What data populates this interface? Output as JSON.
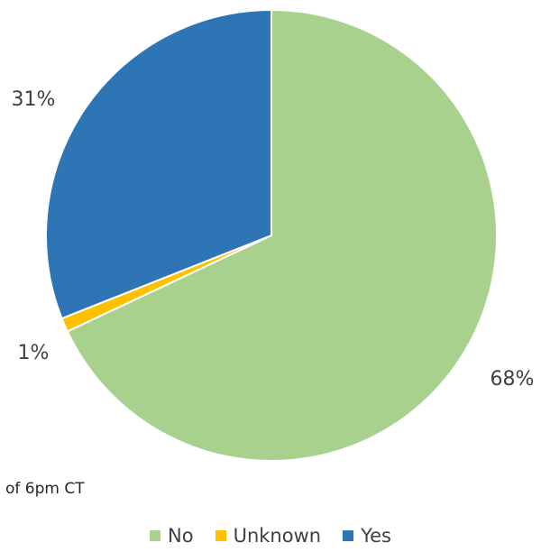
{
  "chart_data": {
    "type": "pie",
    "categories": [
      "No",
      "Unknown",
      "Yes"
    ],
    "values": [
      68,
      1,
      31
    ],
    "labels": [
      "68%",
      "1%",
      "31%"
    ],
    "colors": [
      "#A9D18E",
      "#FFC000",
      "#2E75B6"
    ],
    "legend_position": "bottom",
    "start": "12 o'clock, clockwise"
  },
  "note": "of 6pm CT"
}
